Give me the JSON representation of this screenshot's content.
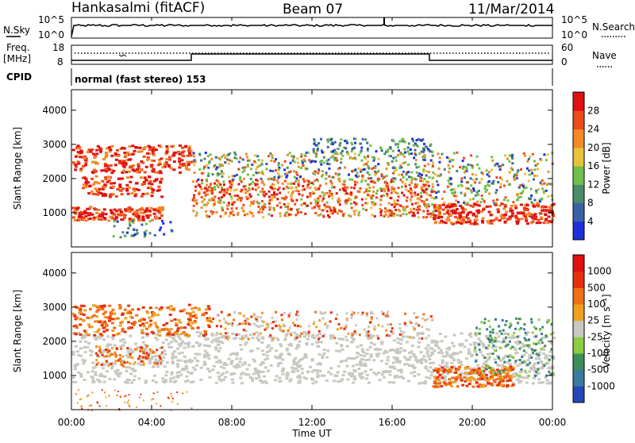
{
  "header": {
    "station": "Hankasalmi (fitACF)",
    "beam": "Beam 07",
    "date": "11/Mar/2014"
  },
  "noise_panel": {
    "left_label": "N.Sky",
    "right_label": "N.Search",
    "y_ticks": [
      "10^5",
      "10^0"
    ]
  },
  "freq_panel": {
    "left_label_1": "Freq.",
    "left_label_2": "[MHz]",
    "right_label": "Nave",
    "left_ticks": [
      "18",
      "8"
    ],
    "right_ticks": [
      "60",
      "0"
    ]
  },
  "cpid_panel": {
    "label": "CPID",
    "text": "normal (fast stereo) 153"
  },
  "x_axis": {
    "label": "Time UT",
    "ticks": [
      "00:00",
      "04:00",
      "08:00",
      "12:00",
      "16:00",
      "20:00",
      "00:00"
    ]
  },
  "chart_data": [
    {
      "type": "heatmap",
      "title": "",
      "ylabel": "Slant Range [km]",
      "xlabel": "",
      "y_ticks": [
        1000,
        2000,
        3000,
        4000
      ],
      "ylim": [
        0,
        4600
      ],
      "colorbar": {
        "label": "Power [dB]",
        "ticks": [
          4,
          8,
          12,
          16,
          20,
          24,
          28
        ],
        "colors": [
          "#1f2fd8",
          "#3a61a8",
          "#4a8c6a",
          "#6fc04a",
          "#e7c23a",
          "#f28a2a",
          "#ee4a1a",
          "#e01010"
        ]
      }
    },
    {
      "type": "heatmap",
      "title": "",
      "ylabel": "Slant Range [km]",
      "xlabel": "Time UT",
      "y_ticks": [
        1000,
        2000,
        3000,
        4000
      ],
      "ylim": [
        0,
        4600
      ],
      "colorbar": {
        "label": "Velocity [m s⁻¹]",
        "ticks": [
          1000,
          500,
          100,
          25,
          -25,
          -100,
          -500,
          -1000
        ],
        "colors": [
          "#2746b8",
          "#3a7a9c",
          "#3c8f5a",
          "#8ccc40",
          "#c8c8c0",
          "#f0a020",
          "#f07018",
          "#e83010",
          "#e01010"
        ]
      }
    }
  ]
}
